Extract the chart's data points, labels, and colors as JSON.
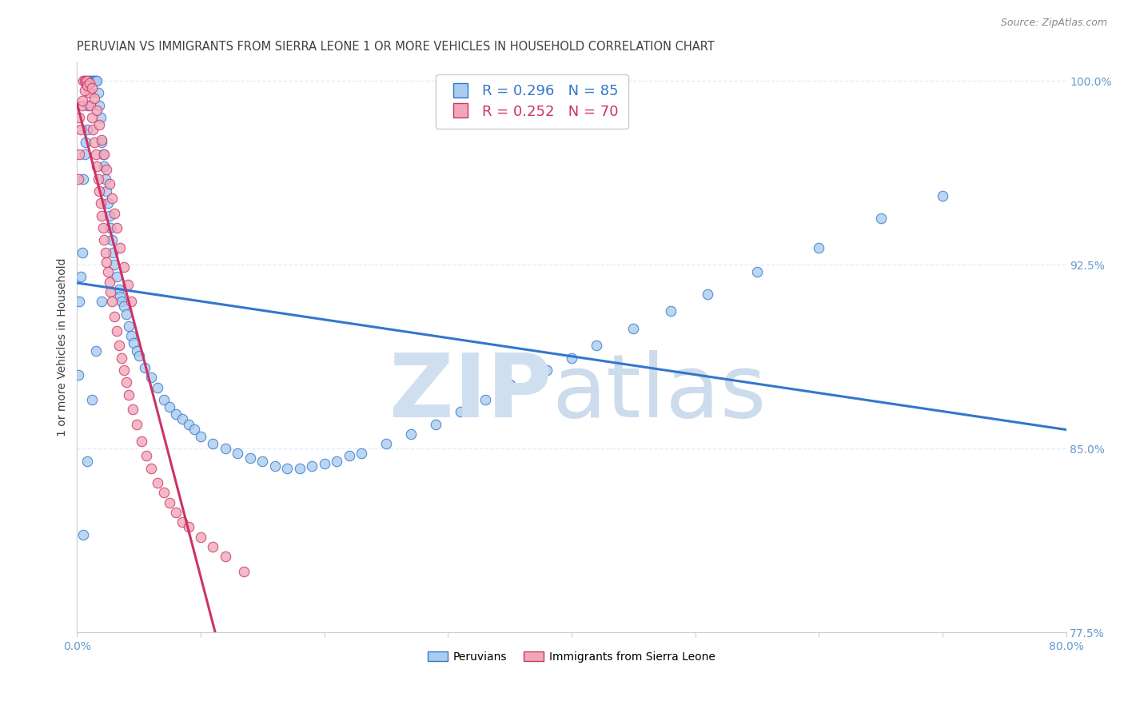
{
  "title": "PERUVIAN VS IMMIGRANTS FROM SIERRA LEONE 1 OR MORE VEHICLES IN HOUSEHOLD CORRELATION CHART",
  "source": "Source: ZipAtlas.com",
  "ylabel": "1 or more Vehicles in Household",
  "legend_label_blue": "Peruvians",
  "legend_label_pink": "Immigrants from Sierra Leone",
  "R_blue": 0.296,
  "N_blue": 85,
  "R_pink": 0.252,
  "N_pink": 70,
  "xlim": [
    0.0,
    0.8
  ],
  "ylim": [
    0.795,
    1.008
  ],
  "yticks": [
    1.0,
    0.925,
    0.85,
    0.775
  ],
  "ytick_labels": [
    "100.0%",
    "92.5%",
    "85.0%",
    "77.5%"
  ],
  "xticks": [
    0.0,
    0.1,
    0.2,
    0.3,
    0.4,
    0.5,
    0.6,
    0.7,
    0.8
  ],
  "xtick_labels": [
    "0.0%",
    "",
    "",
    "",
    "",
    "",
    "",
    "",
    "80.0%"
  ],
  "color_blue": "#aaccee",
  "color_pink": "#f0a8b8",
  "line_blue": "#3377cc",
  "line_pink": "#cc3366",
  "watermark_zip_color": "#d0dff0",
  "watermark_atlas_color": "#c0d4e8",
  "background_color": "#ffffff",
  "title_color": "#404040",
  "axis_color": "#6699cc",
  "grid_color": "#ddeeff",
  "title_fontsize": 10.5,
  "label_fontsize": 10,
  "tick_fontsize": 10,
  "legend_fontsize": 13,
  "marker_size": 9,
  "line_width": 2.2,
  "blue_x": [
    0.001,
    0.002,
    0.003,
    0.004,
    0.005,
    0.006,
    0.007,
    0.008,
    0.009,
    0.01,
    0.011,
    0.012,
    0.013,
    0.014,
    0.015,
    0.016,
    0.017,
    0.018,
    0.019,
    0.02,
    0.021,
    0.022,
    0.023,
    0.024,
    0.025,
    0.026,
    0.027,
    0.028,
    0.029,
    0.03,
    0.032,
    0.034,
    0.035,
    0.036,
    0.038,
    0.04,
    0.042,
    0.044,
    0.046,
    0.048,
    0.05,
    0.055,
    0.06,
    0.065,
    0.07,
    0.075,
    0.08,
    0.085,
    0.09,
    0.095,
    0.1,
    0.11,
    0.12,
    0.13,
    0.14,
    0.15,
    0.16,
    0.17,
    0.18,
    0.19,
    0.2,
    0.21,
    0.22,
    0.23,
    0.25,
    0.27,
    0.29,
    0.31,
    0.33,
    0.35,
    0.38,
    0.4,
    0.42,
    0.45,
    0.48,
    0.51,
    0.55,
    0.6,
    0.65,
    0.7,
    0.005,
    0.008,
    0.012,
    0.015,
    0.02
  ],
  "blue_y": [
    0.88,
    0.91,
    0.92,
    0.93,
    0.96,
    0.97,
    0.975,
    0.98,
    0.99,
    1.0,
    1.0,
    1.0,
    1.0,
    1.0,
    1.0,
    1.0,
    0.995,
    0.99,
    0.985,
    0.975,
    0.97,
    0.965,
    0.96,
    0.955,
    0.95,
    0.945,
    0.94,
    0.935,
    0.93,
    0.925,
    0.92,
    0.915,
    0.912,
    0.91,
    0.908,
    0.905,
    0.9,
    0.896,
    0.893,
    0.89,
    0.888,
    0.883,
    0.879,
    0.875,
    0.87,
    0.867,
    0.864,
    0.862,
    0.86,
    0.858,
    0.855,
    0.852,
    0.85,
    0.848,
    0.846,
    0.845,
    0.843,
    0.842,
    0.842,
    0.843,
    0.844,
    0.845,
    0.847,
    0.848,
    0.852,
    0.856,
    0.86,
    0.865,
    0.87,
    0.876,
    0.882,
    0.887,
    0.892,
    0.899,
    0.906,
    0.913,
    0.922,
    0.932,
    0.944,
    0.953,
    0.815,
    0.845,
    0.87,
    0.89,
    0.91
  ],
  "pink_x": [
    0.001,
    0.002,
    0.003,
    0.004,
    0.005,
    0.006,
    0.007,
    0.008,
    0.009,
    0.01,
    0.011,
    0.012,
    0.013,
    0.014,
    0.015,
    0.016,
    0.017,
    0.018,
    0.019,
    0.02,
    0.021,
    0.022,
    0.023,
    0.024,
    0.025,
    0.026,
    0.027,
    0.028,
    0.03,
    0.032,
    0.034,
    0.036,
    0.038,
    0.04,
    0.042,
    0.045,
    0.048,
    0.052,
    0.056,
    0.06,
    0.065,
    0.07,
    0.075,
    0.08,
    0.085,
    0.09,
    0.1,
    0.11,
    0.12,
    0.135,
    0.002,
    0.004,
    0.006,
    0.008,
    0.01,
    0.012,
    0.014,
    0.016,
    0.018,
    0.02,
    0.022,
    0.024,
    0.026,
    0.028,
    0.03,
    0.032,
    0.035,
    0.038,
    0.041,
    0.044
  ],
  "pink_y": [
    0.96,
    0.97,
    0.98,
    0.99,
    1.0,
    1.0,
    1.0,
    1.0,
    0.998,
    0.995,
    0.99,
    0.985,
    0.98,
    0.975,
    0.97,
    0.965,
    0.96,
    0.955,
    0.95,
    0.945,
    0.94,
    0.935,
    0.93,
    0.926,
    0.922,
    0.918,
    0.914,
    0.91,
    0.904,
    0.898,
    0.892,
    0.887,
    0.882,
    0.877,
    0.872,
    0.866,
    0.86,
    0.853,
    0.847,
    0.842,
    0.836,
    0.832,
    0.828,
    0.824,
    0.82,
    0.818,
    0.814,
    0.81,
    0.806,
    0.8,
    0.985,
    0.992,
    0.996,
    0.998,
    0.999,
    0.997,
    0.993,
    0.988,
    0.982,
    0.976,
    0.97,
    0.964,
    0.958,
    0.952,
    0.946,
    0.94,
    0.932,
    0.924,
    0.917,
    0.91
  ]
}
